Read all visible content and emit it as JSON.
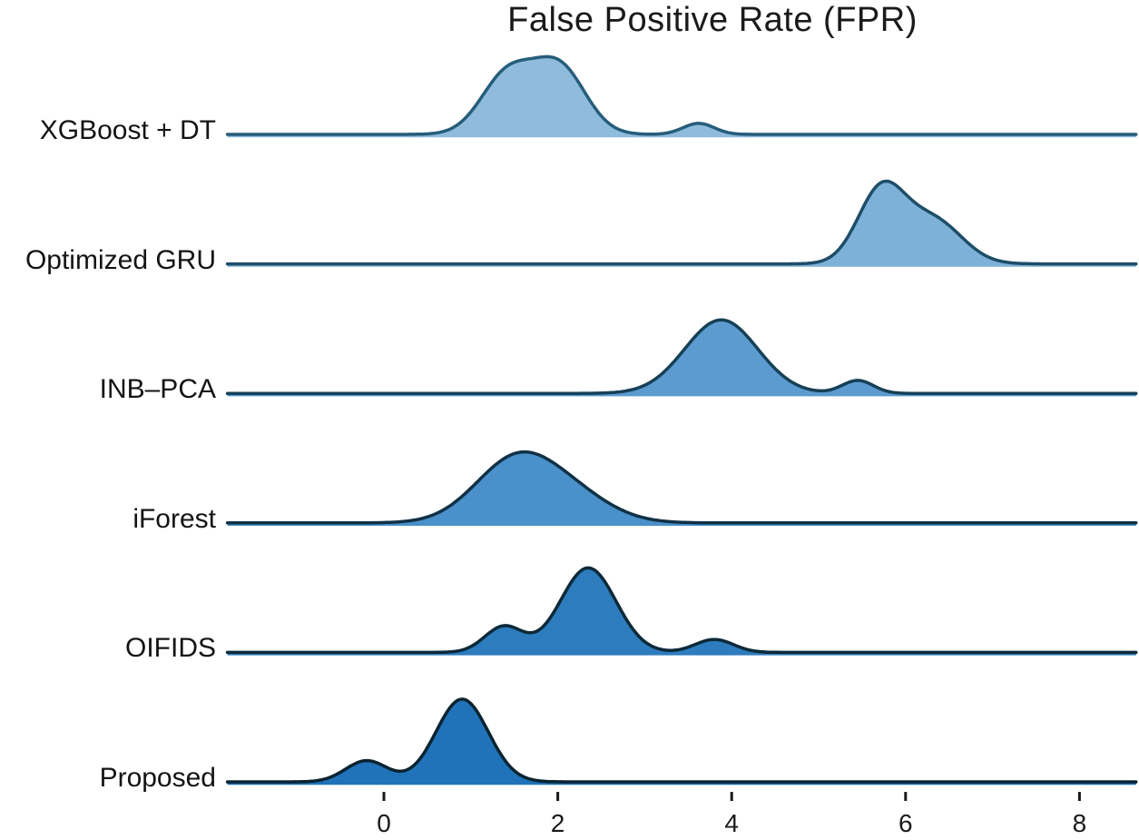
{
  "chart_data": {
    "type": "ridgeline",
    "title": "False Positive Rate (FPR)",
    "xlabel": "",
    "ylabel": "",
    "xlim": [
      -1.8,
      8.65
    ],
    "x_ticks": [
      0,
      2,
      4,
      6,
      8
    ],
    "x_tick_labels": [
      "0",
      "2",
      "4",
      "6",
      "8"
    ],
    "grid": false,
    "legend": "none",
    "series": [
      {
        "label": "XGBoost + DT",
        "peak_x": 1.9,
        "approx_range": [
          0.6,
          3.1
        ],
        "rel_height": 0.92,
        "fill": "#8fbcdd",
        "stroke": "#265d7a",
        "mixture": [
          {
            "mu": 1.42,
            "sigma": 0.3,
            "weight": 0.45
          },
          {
            "mu": 2.02,
            "sigma": 0.3,
            "weight": 0.5
          },
          {
            "mu": 3.62,
            "sigma": 0.18,
            "weight": 0.05
          }
        ]
      },
      {
        "label": "Optimized GRU",
        "peak_x": 5.7,
        "approx_range": [
          4.7,
          7.1
        ],
        "rel_height": 0.98,
        "fill": "#7eb1d7",
        "stroke": "#1e4d68",
        "mixture": [
          {
            "mu": 5.72,
            "sigma": 0.27,
            "weight": 0.58
          },
          {
            "mu": 6.32,
            "sigma": 0.33,
            "weight": 0.42
          }
        ]
      },
      {
        "label": "INB–PCA",
        "peak_x": 3.9,
        "approx_range": [
          2.3,
          5.0
        ],
        "rel_height": 0.87,
        "fill": "#5b9bd0",
        "stroke": "#174056",
        "mixture": [
          {
            "mu": 3.88,
            "sigma": 0.42,
            "weight": 0.93
          },
          {
            "mu": 5.45,
            "sigma": 0.18,
            "weight": 0.07
          }
        ]
      },
      {
        "label": "iForest",
        "peak_x": 1.6,
        "approx_range": [
          0.0,
          3.3
        ],
        "rel_height": 0.84,
        "fill": "#4a90ca",
        "stroke": "#103146",
        "mixture": [
          {
            "mu": 1.52,
            "sigma": 0.47,
            "weight": 0.75
          },
          {
            "mu": 2.2,
            "sigma": 0.45,
            "weight": 0.25
          }
        ]
      },
      {
        "label": "OIFIDS",
        "peak_x": 2.35,
        "approx_range": [
          1.1,
          3.5
        ],
        "rel_height": 1.0,
        "fill": "#2d7cbd",
        "stroke": "#0c2939",
        "mixture": [
          {
            "mu": 1.38,
            "sigma": 0.22,
            "weight": 0.16
          },
          {
            "mu": 2.35,
            "sigma": 0.32,
            "weight": 0.76
          },
          {
            "mu": 3.8,
            "sigma": 0.22,
            "weight": 0.08
          }
        ]
      },
      {
        "label": "Proposed",
        "peak_x": 0.9,
        "approx_range": [
          -0.8,
          1.9
        ],
        "rel_height": 0.98,
        "fill": "#2073b8",
        "stroke": "#0a2331",
        "mixture": [
          {
            "mu": -0.2,
            "sigma": 0.24,
            "weight": 0.17
          },
          {
            "mu": 0.9,
            "sigma": 0.3,
            "weight": 0.83
          }
        ]
      }
    ],
    "colors": {
      "background": "#ffffff",
      "text": "#1a1a1a",
      "tick": "#1a1a1a"
    }
  }
}
